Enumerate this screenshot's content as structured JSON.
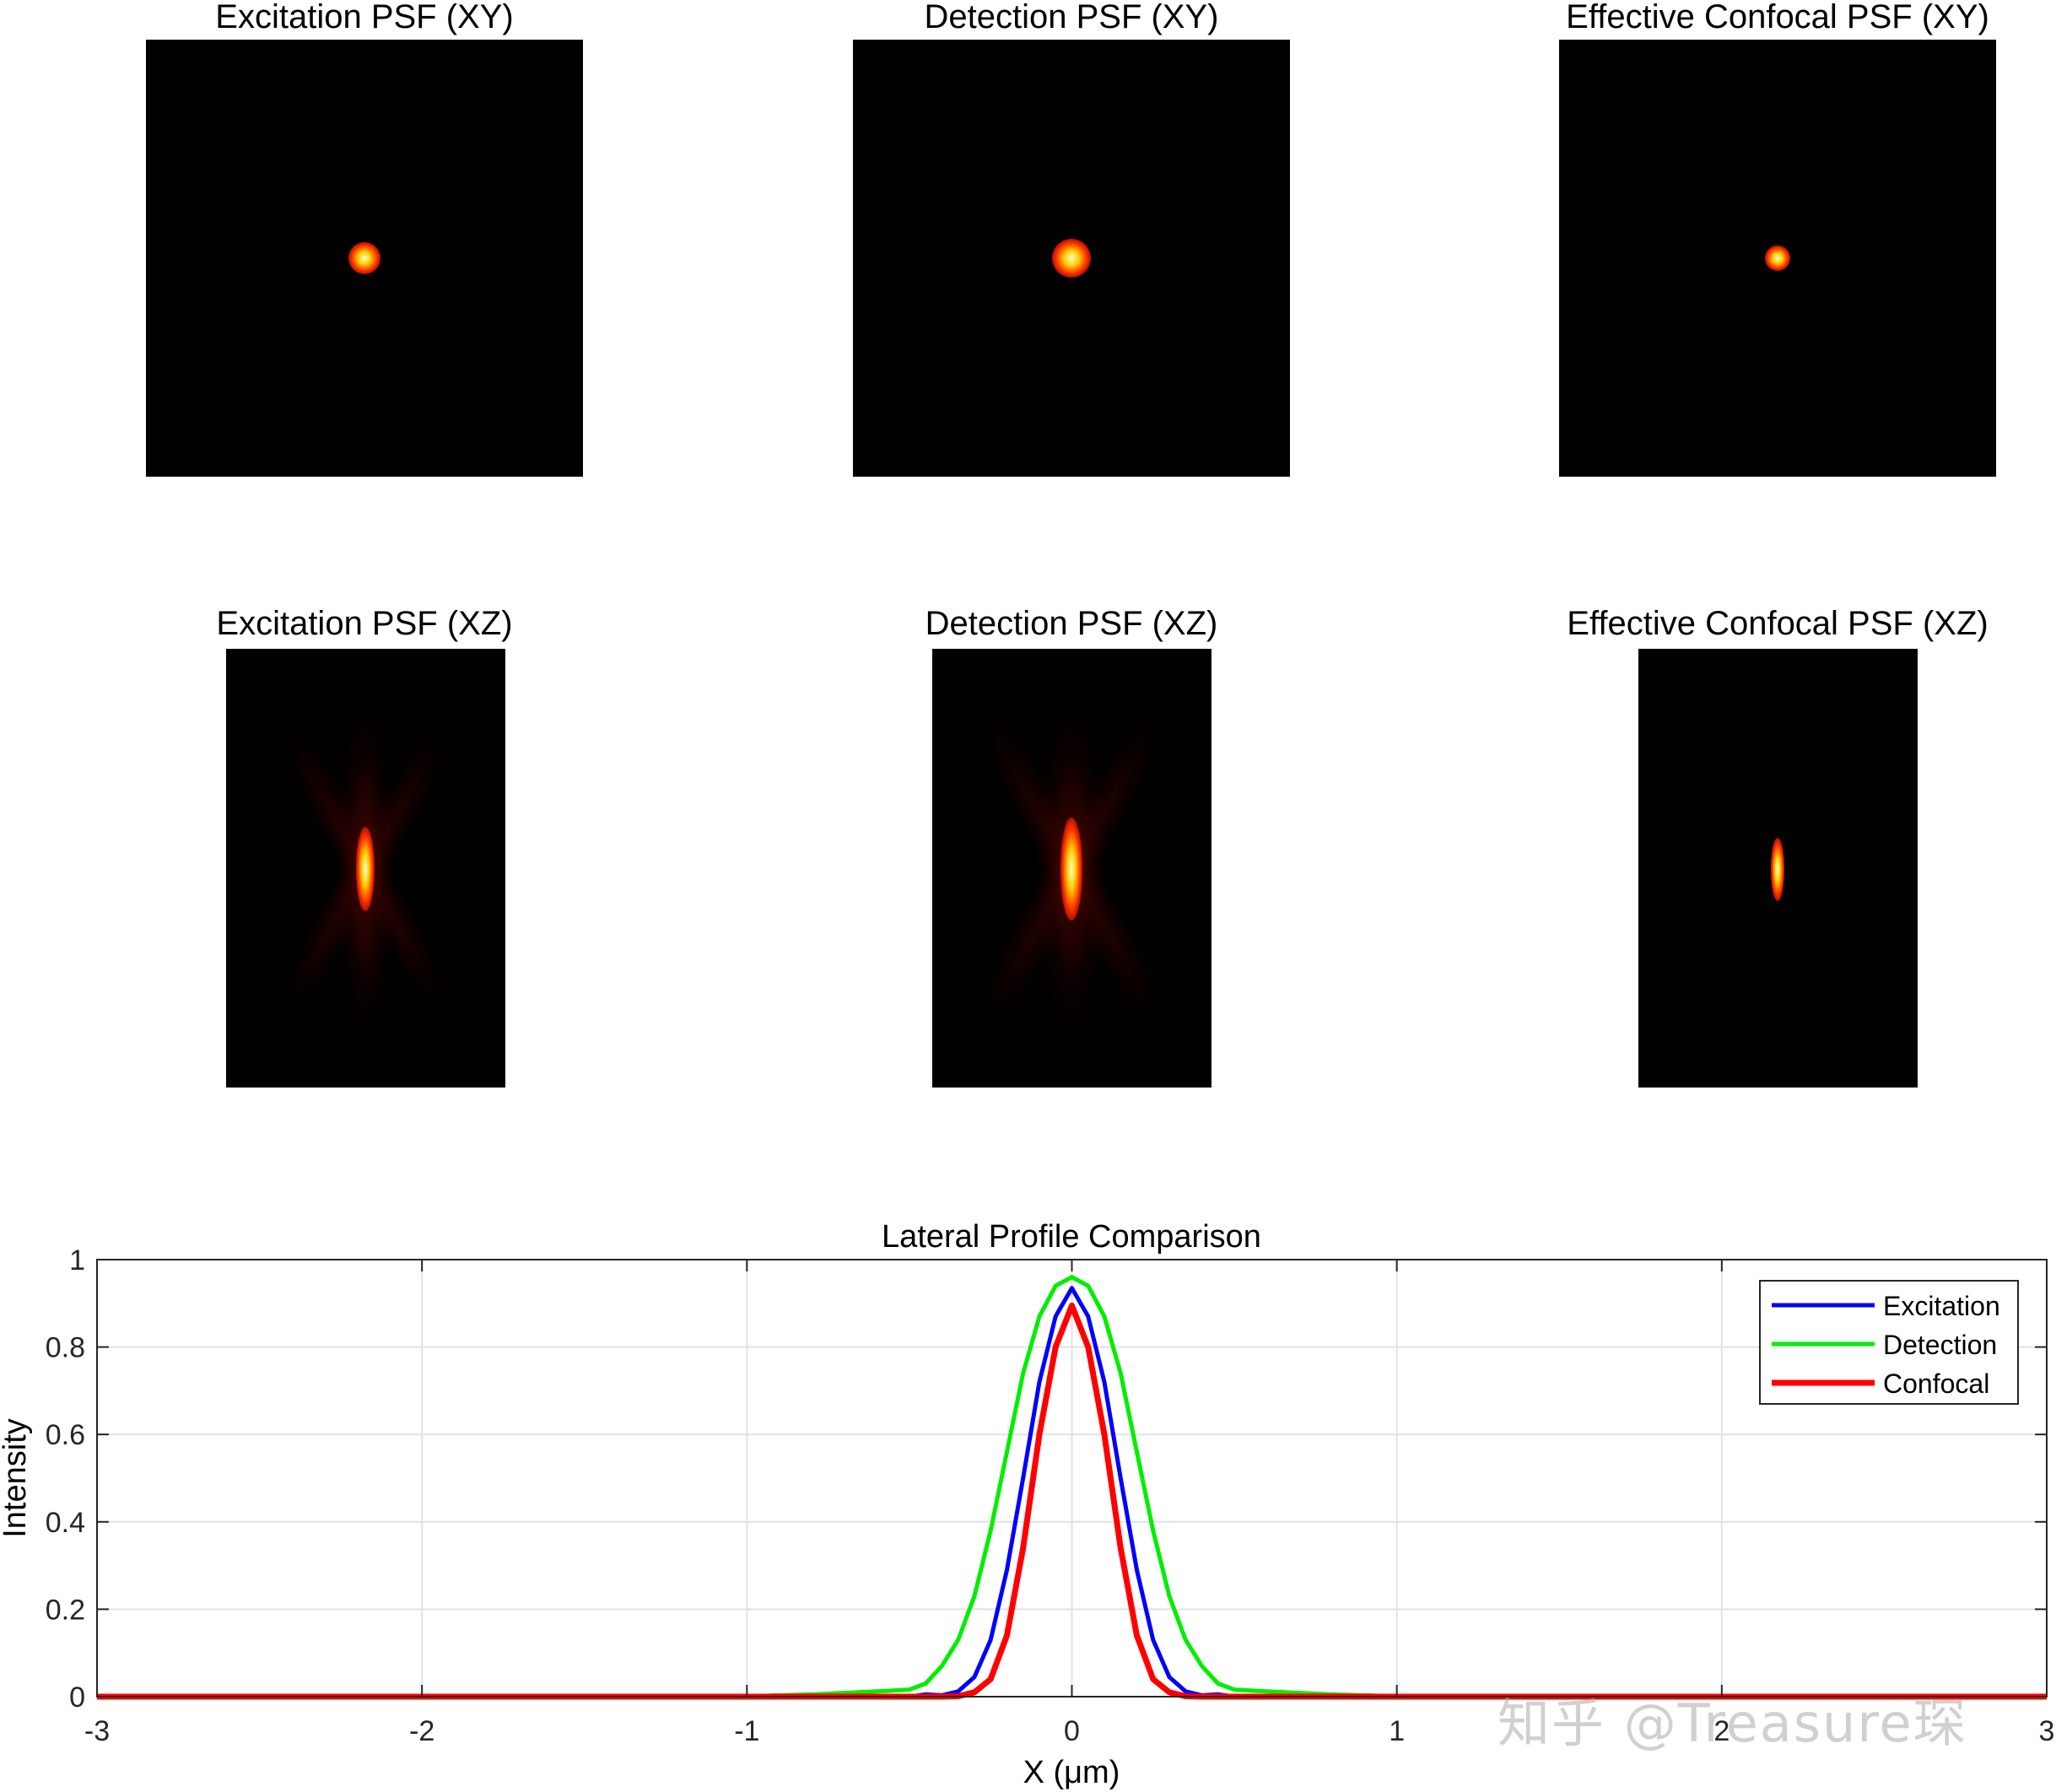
{
  "panels": {
    "xy": [
      {
        "title": "Excitation PSF (XY)",
        "spot_scale": 1.0
      },
      {
        "title": "Detection PSF (XY)",
        "spot_scale": 1.22
      },
      {
        "title": "Effective Confocal PSF (XY)",
        "spot_scale": 0.78
      }
    ],
    "xz": [
      {
        "title": "Excitation PSF (XZ)",
        "spot_scale": 1.0
      },
      {
        "title": "Detection PSF (XZ)",
        "spot_scale": 1.22
      },
      {
        "title": "Effective Confocal PSF (XZ)",
        "spot_scale": 0.75
      }
    ]
  },
  "colormap": {
    "core": "#ffffcc",
    "mid": "#ffcc00",
    "outer": "#ff3300",
    "edge": "#8b0000",
    "background": "#000000"
  },
  "chart_data": {
    "type": "line",
    "title": "Lateral Profile Comparison",
    "xlabel": "X (μm)",
    "ylabel": "Intensity",
    "xlim": [
      -3,
      3
    ],
    "ylim": [
      0,
      1
    ],
    "xticks": [
      "-3",
      "-2",
      "-1",
      "0",
      "1",
      "2",
      "3"
    ],
    "yticks": [
      "0",
      "0.2",
      "0.4",
      "0.6",
      "0.8",
      "1"
    ],
    "grid": true,
    "legend_position": "top-right",
    "series": [
      {
        "name": "Excitation",
        "color": "#0000ff",
        "peak": 0.935,
        "x": [
          -3,
          -0.5,
          -0.45,
          -0.4,
          -0.35,
          -0.3,
          -0.25,
          -0.2,
          -0.15,
          -0.1,
          -0.05,
          0,
          0.05,
          0.1,
          0.15,
          0.2,
          0.25,
          0.3,
          0.35,
          0.4,
          0.45,
          0.5,
          3
        ],
        "y": [
          0,
          0,
          0.005,
          0.003,
          0.012,
          0.045,
          0.13,
          0.29,
          0.5,
          0.72,
          0.87,
          0.935,
          0.87,
          0.72,
          0.5,
          0.29,
          0.13,
          0.045,
          0.012,
          0.003,
          0.005,
          0,
          0
        ]
      },
      {
        "name": "Detection",
        "color": "#00ee00",
        "peak": 0.96,
        "x": [
          -3,
          -1.0,
          -0.8,
          -0.6,
          -0.5,
          -0.45,
          -0.4,
          -0.35,
          -0.3,
          -0.25,
          -0.2,
          -0.15,
          -0.1,
          -0.05,
          0,
          0.05,
          0.1,
          0.15,
          0.2,
          0.25,
          0.3,
          0.35,
          0.4,
          0.45,
          0.5,
          0.6,
          0.8,
          1.0,
          3
        ],
        "y": [
          0,
          0.001,
          0.005,
          0.012,
          0.016,
          0.03,
          0.07,
          0.13,
          0.23,
          0.38,
          0.56,
          0.74,
          0.87,
          0.94,
          0.96,
          0.94,
          0.87,
          0.74,
          0.56,
          0.38,
          0.23,
          0.13,
          0.07,
          0.03,
          0.016,
          0.012,
          0.005,
          0.001,
          0
        ]
      },
      {
        "name": "Confocal",
        "color": "#ff0000",
        "peak": 0.895,
        "x": [
          -3,
          -0.4,
          -0.35,
          -0.3,
          -0.25,
          -0.2,
          -0.15,
          -0.1,
          -0.05,
          0,
          0.05,
          0.1,
          0.15,
          0.2,
          0.25,
          0.3,
          0.35,
          0.4,
          3
        ],
        "y": [
          0,
          0,
          0.001,
          0.01,
          0.04,
          0.14,
          0.34,
          0.6,
          0.8,
          0.895,
          0.8,
          0.6,
          0.34,
          0.14,
          0.04,
          0.01,
          0.001,
          0,
          0
        ]
      }
    ]
  },
  "watermark": "知乎 @Treasure琛"
}
